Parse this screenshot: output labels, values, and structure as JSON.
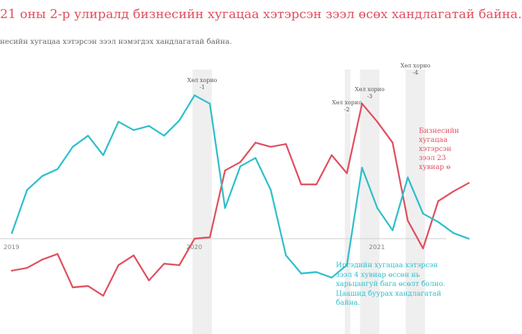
{
  "title": "21 оны 2-р улиралд бизнесийн хугацаа хэтэрсэн зээл өсөх хандлагатай байна.",
  "subtitle": "несийн хугацаа хэтэрсэн зээл нэмэгдэх хандлагатай байна.",
  "annotations": {
    "business": "Бизнесийн\nхугацаа\nхэтэрсэн\nзээл 23\nхувиар ө",
    "consumer": "Иргэдийн хугацаа хэтэрсэн зээл 4 хувиар өссөн нь харьцангуй бага өсөлт болно. Цаашид буурах хандлагатай байна."
  },
  "colors": {
    "business": "#e0505f",
    "consumer": "#2ebfcc",
    "band": "#ececec",
    "axis": "#cccccc"
  },
  "chart_data": {
    "type": "line",
    "x": [
      "2019-01",
      "2019-02",
      "2019-03",
      "2019-04",
      "2019-05",
      "2019-06",
      "2019-07",
      "2019-08",
      "2019-09",
      "2019-10",
      "2019-11",
      "2019-12",
      "2020-01",
      "2020-02",
      "2020-03",
      "2020-04",
      "2020-05",
      "2020-06",
      "2020-07",
      "2020-08",
      "2020-09",
      "2020-10",
      "2020-11",
      "2020-12",
      "2021-01",
      "2021-02",
      "2021-03",
      "2021-04",
      "2021-05",
      "2021-06",
      "2021-07"
    ],
    "x_tick_labels": [
      "2019",
      "2020",
      "2021"
    ],
    "series": [
      {
        "values": [
          -11.5,
          -10.5,
          -7.5,
          -5.5,
          -17.5,
          -17,
          -20.5,
          -9.5,
          -6,
          -15,
          -9,
          -9.5,
          0,
          0.5,
          24.5,
          27.5,
          34.5,
          33,
          34,
          19.5,
          19.5,
          30,
          23.5,
          48.5,
          42,
          34.5,
          6.5,
          -3.5,
          13.5,
          17,
          20
        ]
      },
      {
        "values": [
          2,
          17.5,
          22.5,
          25,
          33,
          37,
          30,
          42,
          39,
          40.5,
          37,
          42.5,
          51.5,
          48.5,
          11,
          26,
          29,
          17.5,
          -6,
          -12.5,
          -12,
          -14,
          -9.5,
          25.5,
          11,
          3,
          22,
          9,
          6,
          2,
          0
        ]
      }
    ],
    "ylim": [
      -40,
      65
    ],
    "grid": false,
    "shaded_periods": [
      {
        "label": "Хөл хорио\n-1",
        "start": "2020-01",
        "end": "2020-02"
      },
      {
        "label": "Хөл хорио\n-2",
        "start": "2020-11",
        "end": "2020-11"
      },
      {
        "label": "Хөл хорио\n-3",
        "start": "2020-12",
        "end": "2021-01"
      },
      {
        "label": "Хөл хорио\n-4",
        "start": "2021-03",
        "end": "2021-04"
      }
    ]
  }
}
